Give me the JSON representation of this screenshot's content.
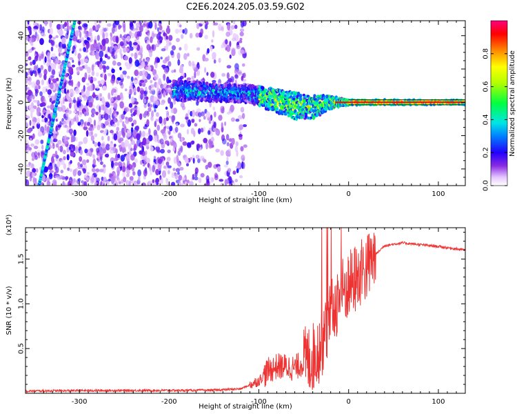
{
  "title": "C2E6.2024.205.03.59.G02",
  "chart_data": [
    {
      "type": "heatmap",
      "xlabel": "Height of straight line (km)",
      "ylabel": "Frequency (Hz)",
      "xlim": [
        -360,
        130
      ],
      "ylim": [
        -50,
        49
      ],
      "xticks": [
        -300,
        -200,
        -100,
        0,
        100
      ],
      "yticks": [
        -40,
        -20,
        0,
        20,
        40
      ],
      "colorbar": {
        "label": "Normalized spectral amplitude",
        "range": [
          0,
          1
        ],
        "ticks": [
          "0.0",
          "0.2",
          "0.4",
          "0.6",
          "0.8"
        ]
      },
      "features": {
        "noise_region_x": [
          -360,
          -115
        ],
        "diagonal_streak": {
          "from": [
            -345,
            -50
          ],
          "to": [
            -305,
            49
          ]
        },
        "band_center": [
          [
            -195,
            7
          ],
          [
            -150,
            6
          ],
          [
            -110,
            5
          ],
          [
            -80,
            1
          ],
          [
            -60,
            -2
          ],
          [
            -40,
            -3
          ],
          [
            -20,
            0
          ],
          [
            0,
            0
          ],
          [
            130,
            0
          ]
        ],
        "band_halfwidth": [
          [
            -195,
            6
          ],
          [
            -120,
            5
          ],
          [
            -60,
            8
          ],
          [
            -40,
            7
          ],
          [
            -15,
            3
          ],
          [
            0,
            1.5
          ],
          [
            130,
            1.2
          ]
        ]
      }
    },
    {
      "type": "line",
      "xlabel": "Height of straight line (km)",
      "ylabel": "SNR (10 * v/v)",
      "yscale_label": "(x10⁴)",
      "xlim": [
        -360,
        130
      ],
      "ylim": [
        0,
        18500
      ],
      "xticks": [
        -300,
        -200,
        -100,
        0,
        100
      ],
      "yticks": [
        0.5,
        1.0,
        1.5
      ],
      "ytick_labels": [
        "0.5",
        "1.0",
        "1.5"
      ],
      "series": [
        {
          "color": "#ee3333",
          "x": [
            -360,
            -300,
            -200,
            -150,
            -120,
            -100,
            -90,
            -80,
            -70,
            -60,
            -50,
            -40,
            -30,
            -20,
            -10,
            0,
            10,
            20,
            30,
            40,
            60,
            80,
            100,
            130
          ],
          "y": [
            250,
            300,
            320,
            350,
            500,
            1400,
            2500,
            3000,
            3000,
            2800,
            3500,
            4000,
            5500,
            8500,
            11000,
            12000,
            13000,
            14000,
            15500,
            16500,
            16800,
            16600,
            16400,
            16000
          ]
        }
      ]
    }
  ]
}
